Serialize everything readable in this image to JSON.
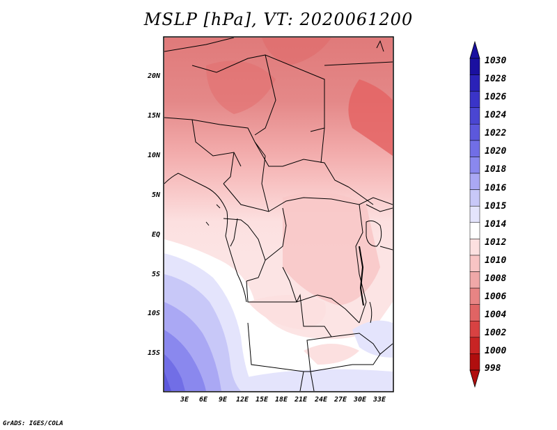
{
  "title": "MSLP [hPa], VT: 2020061200",
  "credit": "GrADS: IGES/COLA",
  "y_ticks": [
    "20N",
    "15N",
    "10N",
    "5N",
    "EQ",
    "5S",
    "10S",
    "15S"
  ],
  "x_ticks": [
    "3E",
    "6E",
    "9E",
    "12E",
    "15E",
    "18E",
    "21E",
    "24E",
    "27E",
    "30E",
    "33E"
  ],
  "colorbar": {
    "labels": [
      "1030",
      "1028",
      "1026",
      "1024",
      "1022",
      "1020",
      "1018",
      "1016",
      "1015",
      "1014",
      "1012",
      "1010",
      "1008",
      "1006",
      "1004",
      "1002",
      "1000",
      "998"
    ],
    "colors": [
      "#1a10a0",
      "#2a22b8",
      "#3a34c8",
      "#4a46d2",
      "#5c58dc",
      "#716ee6",
      "#8a88ee",
      "#aaa8f4",
      "#c8c8f8",
      "#e4e4fc",
      "#ffffff",
      "#fce0e0",
      "#f8c4c4",
      "#f0a8a8",
      "#e88484",
      "#e06464",
      "#d84242",
      "#c82424",
      "#b00e0e"
    ]
  },
  "colors": {
    "land_line": "#000000"
  }
}
